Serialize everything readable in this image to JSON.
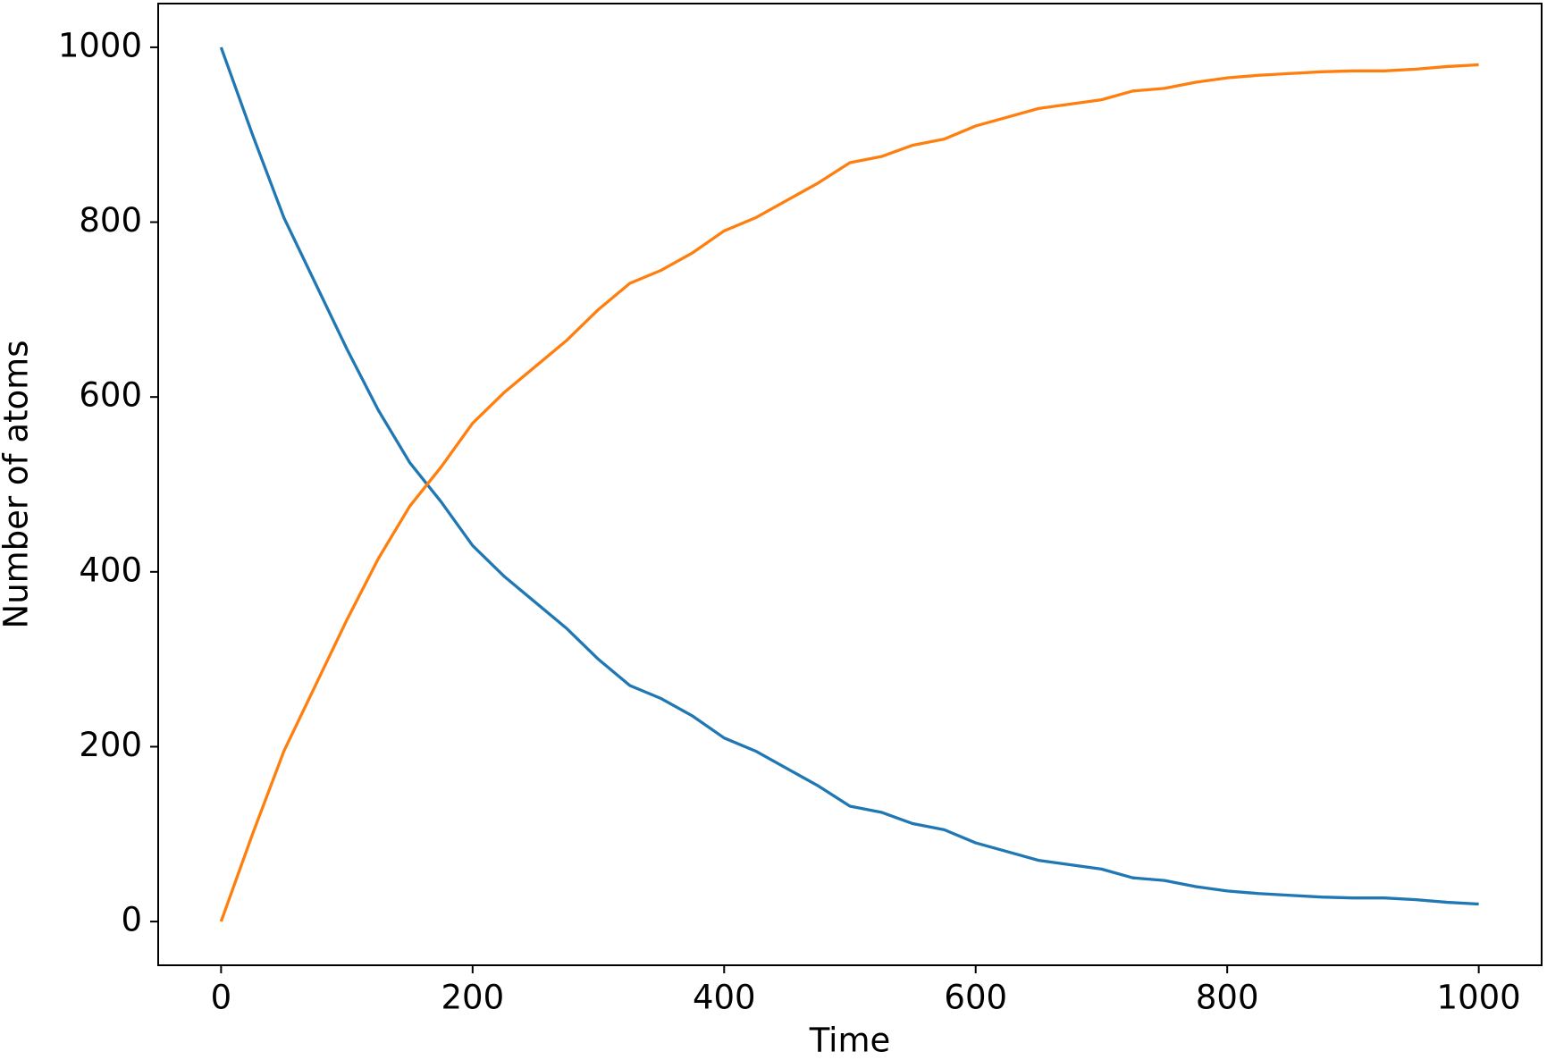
{
  "chart_data": {
    "type": "line",
    "x_label": "Time",
    "y_label": "Number of atoms",
    "x": [
      0,
      25,
      50,
      75,
      100,
      125,
      150,
      175,
      200,
      225,
      250,
      275,
      300,
      325,
      350,
      375,
      400,
      425,
      450,
      475,
      500,
      525,
      550,
      575,
      600,
      625,
      650,
      675,
      700,
      725,
      750,
      775,
      800,
      825,
      850,
      875,
      900,
      925,
      950,
      975,
      1000
    ],
    "series": [
      {
        "color": "#1f77b4",
        "values": [
          1000,
          900,
          805,
          730,
          655,
          585,
          525,
          480,
          430,
          395,
          365,
          335,
          300,
          270,
          255,
          235,
          210,
          195,
          175,
          155,
          132,
          125,
          112,
          105,
          90,
          80,
          70,
          65,
          60,
          50,
          47,
          40,
          35,
          32,
          30,
          28,
          27,
          27,
          25,
          22,
          20
        ]
      },
      {
        "color": "#ff7f0e",
        "values": [
          0,
          100,
          195,
          270,
          345,
          415,
          475,
          520,
          570,
          605,
          635,
          665,
          700,
          730,
          745,
          765,
          790,
          805,
          825,
          845,
          868,
          875,
          888,
          895,
          910,
          920,
          930,
          935,
          940,
          950,
          953,
          960,
          965,
          968,
          970,
          972,
          973,
          973,
          975,
          978,
          980
        ]
      }
    ],
    "xlim": [
      -50,
      1050
    ],
    "xticks": [
      0,
      200,
      400,
      600,
      800,
      1000
    ],
    "ylim": [
      -50,
      1050
    ],
    "yticks": [
      0,
      200,
      400,
      600,
      800,
      1000
    ],
    "grid": false
  }
}
